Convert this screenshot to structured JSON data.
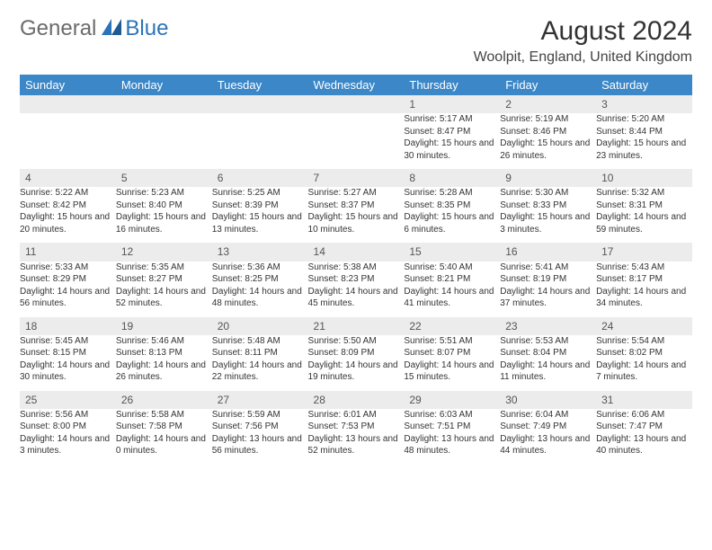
{
  "logo": {
    "gray": "General",
    "blue": "Blue"
  },
  "title": "August 2024",
  "location": "Woolpit, England, United Kingdom",
  "colors": {
    "header_bg": "#3b87c8",
    "header_text": "#ffffff",
    "daynum_bg": "#ececec",
    "rule": "#3b87c8",
    "logo_gray": "#6b6b6b",
    "logo_blue": "#2d73b8"
  },
  "typography": {
    "title_fontsize": 30,
    "location_fontsize": 16,
    "weekday_fontsize": 13,
    "daynum_fontsize": 12,
    "body_fontsize": 10
  },
  "weekdays": [
    "Sunday",
    "Monday",
    "Tuesday",
    "Wednesday",
    "Thursday",
    "Friday",
    "Saturday"
  ],
  "weeks": [
    [
      null,
      null,
      null,
      null,
      {
        "n": "1",
        "sr": "5:17 AM",
        "ss": "8:47 PM",
        "dl": "15 hours and 30 minutes."
      },
      {
        "n": "2",
        "sr": "5:19 AM",
        "ss": "8:46 PM",
        "dl": "15 hours and 26 minutes."
      },
      {
        "n": "3",
        "sr": "5:20 AM",
        "ss": "8:44 PM",
        "dl": "15 hours and 23 minutes."
      }
    ],
    [
      {
        "n": "4",
        "sr": "5:22 AM",
        "ss": "8:42 PM",
        "dl": "15 hours and 20 minutes."
      },
      {
        "n": "5",
        "sr": "5:23 AM",
        "ss": "8:40 PM",
        "dl": "15 hours and 16 minutes."
      },
      {
        "n": "6",
        "sr": "5:25 AM",
        "ss": "8:39 PM",
        "dl": "15 hours and 13 minutes."
      },
      {
        "n": "7",
        "sr": "5:27 AM",
        "ss": "8:37 PM",
        "dl": "15 hours and 10 minutes."
      },
      {
        "n": "8",
        "sr": "5:28 AM",
        "ss": "8:35 PM",
        "dl": "15 hours and 6 minutes."
      },
      {
        "n": "9",
        "sr": "5:30 AM",
        "ss": "8:33 PM",
        "dl": "15 hours and 3 minutes."
      },
      {
        "n": "10",
        "sr": "5:32 AM",
        "ss": "8:31 PM",
        "dl": "14 hours and 59 minutes."
      }
    ],
    [
      {
        "n": "11",
        "sr": "5:33 AM",
        "ss": "8:29 PM",
        "dl": "14 hours and 56 minutes."
      },
      {
        "n": "12",
        "sr": "5:35 AM",
        "ss": "8:27 PM",
        "dl": "14 hours and 52 minutes."
      },
      {
        "n": "13",
        "sr": "5:36 AM",
        "ss": "8:25 PM",
        "dl": "14 hours and 48 minutes."
      },
      {
        "n": "14",
        "sr": "5:38 AM",
        "ss": "8:23 PM",
        "dl": "14 hours and 45 minutes."
      },
      {
        "n": "15",
        "sr": "5:40 AM",
        "ss": "8:21 PM",
        "dl": "14 hours and 41 minutes."
      },
      {
        "n": "16",
        "sr": "5:41 AM",
        "ss": "8:19 PM",
        "dl": "14 hours and 37 minutes."
      },
      {
        "n": "17",
        "sr": "5:43 AM",
        "ss": "8:17 PM",
        "dl": "14 hours and 34 minutes."
      }
    ],
    [
      {
        "n": "18",
        "sr": "5:45 AM",
        "ss": "8:15 PM",
        "dl": "14 hours and 30 minutes."
      },
      {
        "n": "19",
        "sr": "5:46 AM",
        "ss": "8:13 PM",
        "dl": "14 hours and 26 minutes."
      },
      {
        "n": "20",
        "sr": "5:48 AM",
        "ss": "8:11 PM",
        "dl": "14 hours and 22 minutes."
      },
      {
        "n": "21",
        "sr": "5:50 AM",
        "ss": "8:09 PM",
        "dl": "14 hours and 19 minutes."
      },
      {
        "n": "22",
        "sr": "5:51 AM",
        "ss": "8:07 PM",
        "dl": "14 hours and 15 minutes."
      },
      {
        "n": "23",
        "sr": "5:53 AM",
        "ss": "8:04 PM",
        "dl": "14 hours and 11 minutes."
      },
      {
        "n": "24",
        "sr": "5:54 AM",
        "ss": "8:02 PM",
        "dl": "14 hours and 7 minutes."
      }
    ],
    [
      {
        "n": "25",
        "sr": "5:56 AM",
        "ss": "8:00 PM",
        "dl": "14 hours and 3 minutes."
      },
      {
        "n": "26",
        "sr": "5:58 AM",
        "ss": "7:58 PM",
        "dl": "14 hours and 0 minutes."
      },
      {
        "n": "27",
        "sr": "5:59 AM",
        "ss": "7:56 PM",
        "dl": "13 hours and 56 minutes."
      },
      {
        "n": "28",
        "sr": "6:01 AM",
        "ss": "7:53 PM",
        "dl": "13 hours and 52 minutes."
      },
      {
        "n": "29",
        "sr": "6:03 AM",
        "ss": "7:51 PM",
        "dl": "13 hours and 48 minutes."
      },
      {
        "n": "30",
        "sr": "6:04 AM",
        "ss": "7:49 PM",
        "dl": "13 hours and 44 minutes."
      },
      {
        "n": "31",
        "sr": "6:06 AM",
        "ss": "7:47 PM",
        "dl": "13 hours and 40 minutes."
      }
    ]
  ],
  "labels": {
    "sunrise": "Sunrise:",
    "sunset": "Sunset:",
    "daylight": "Daylight:"
  }
}
